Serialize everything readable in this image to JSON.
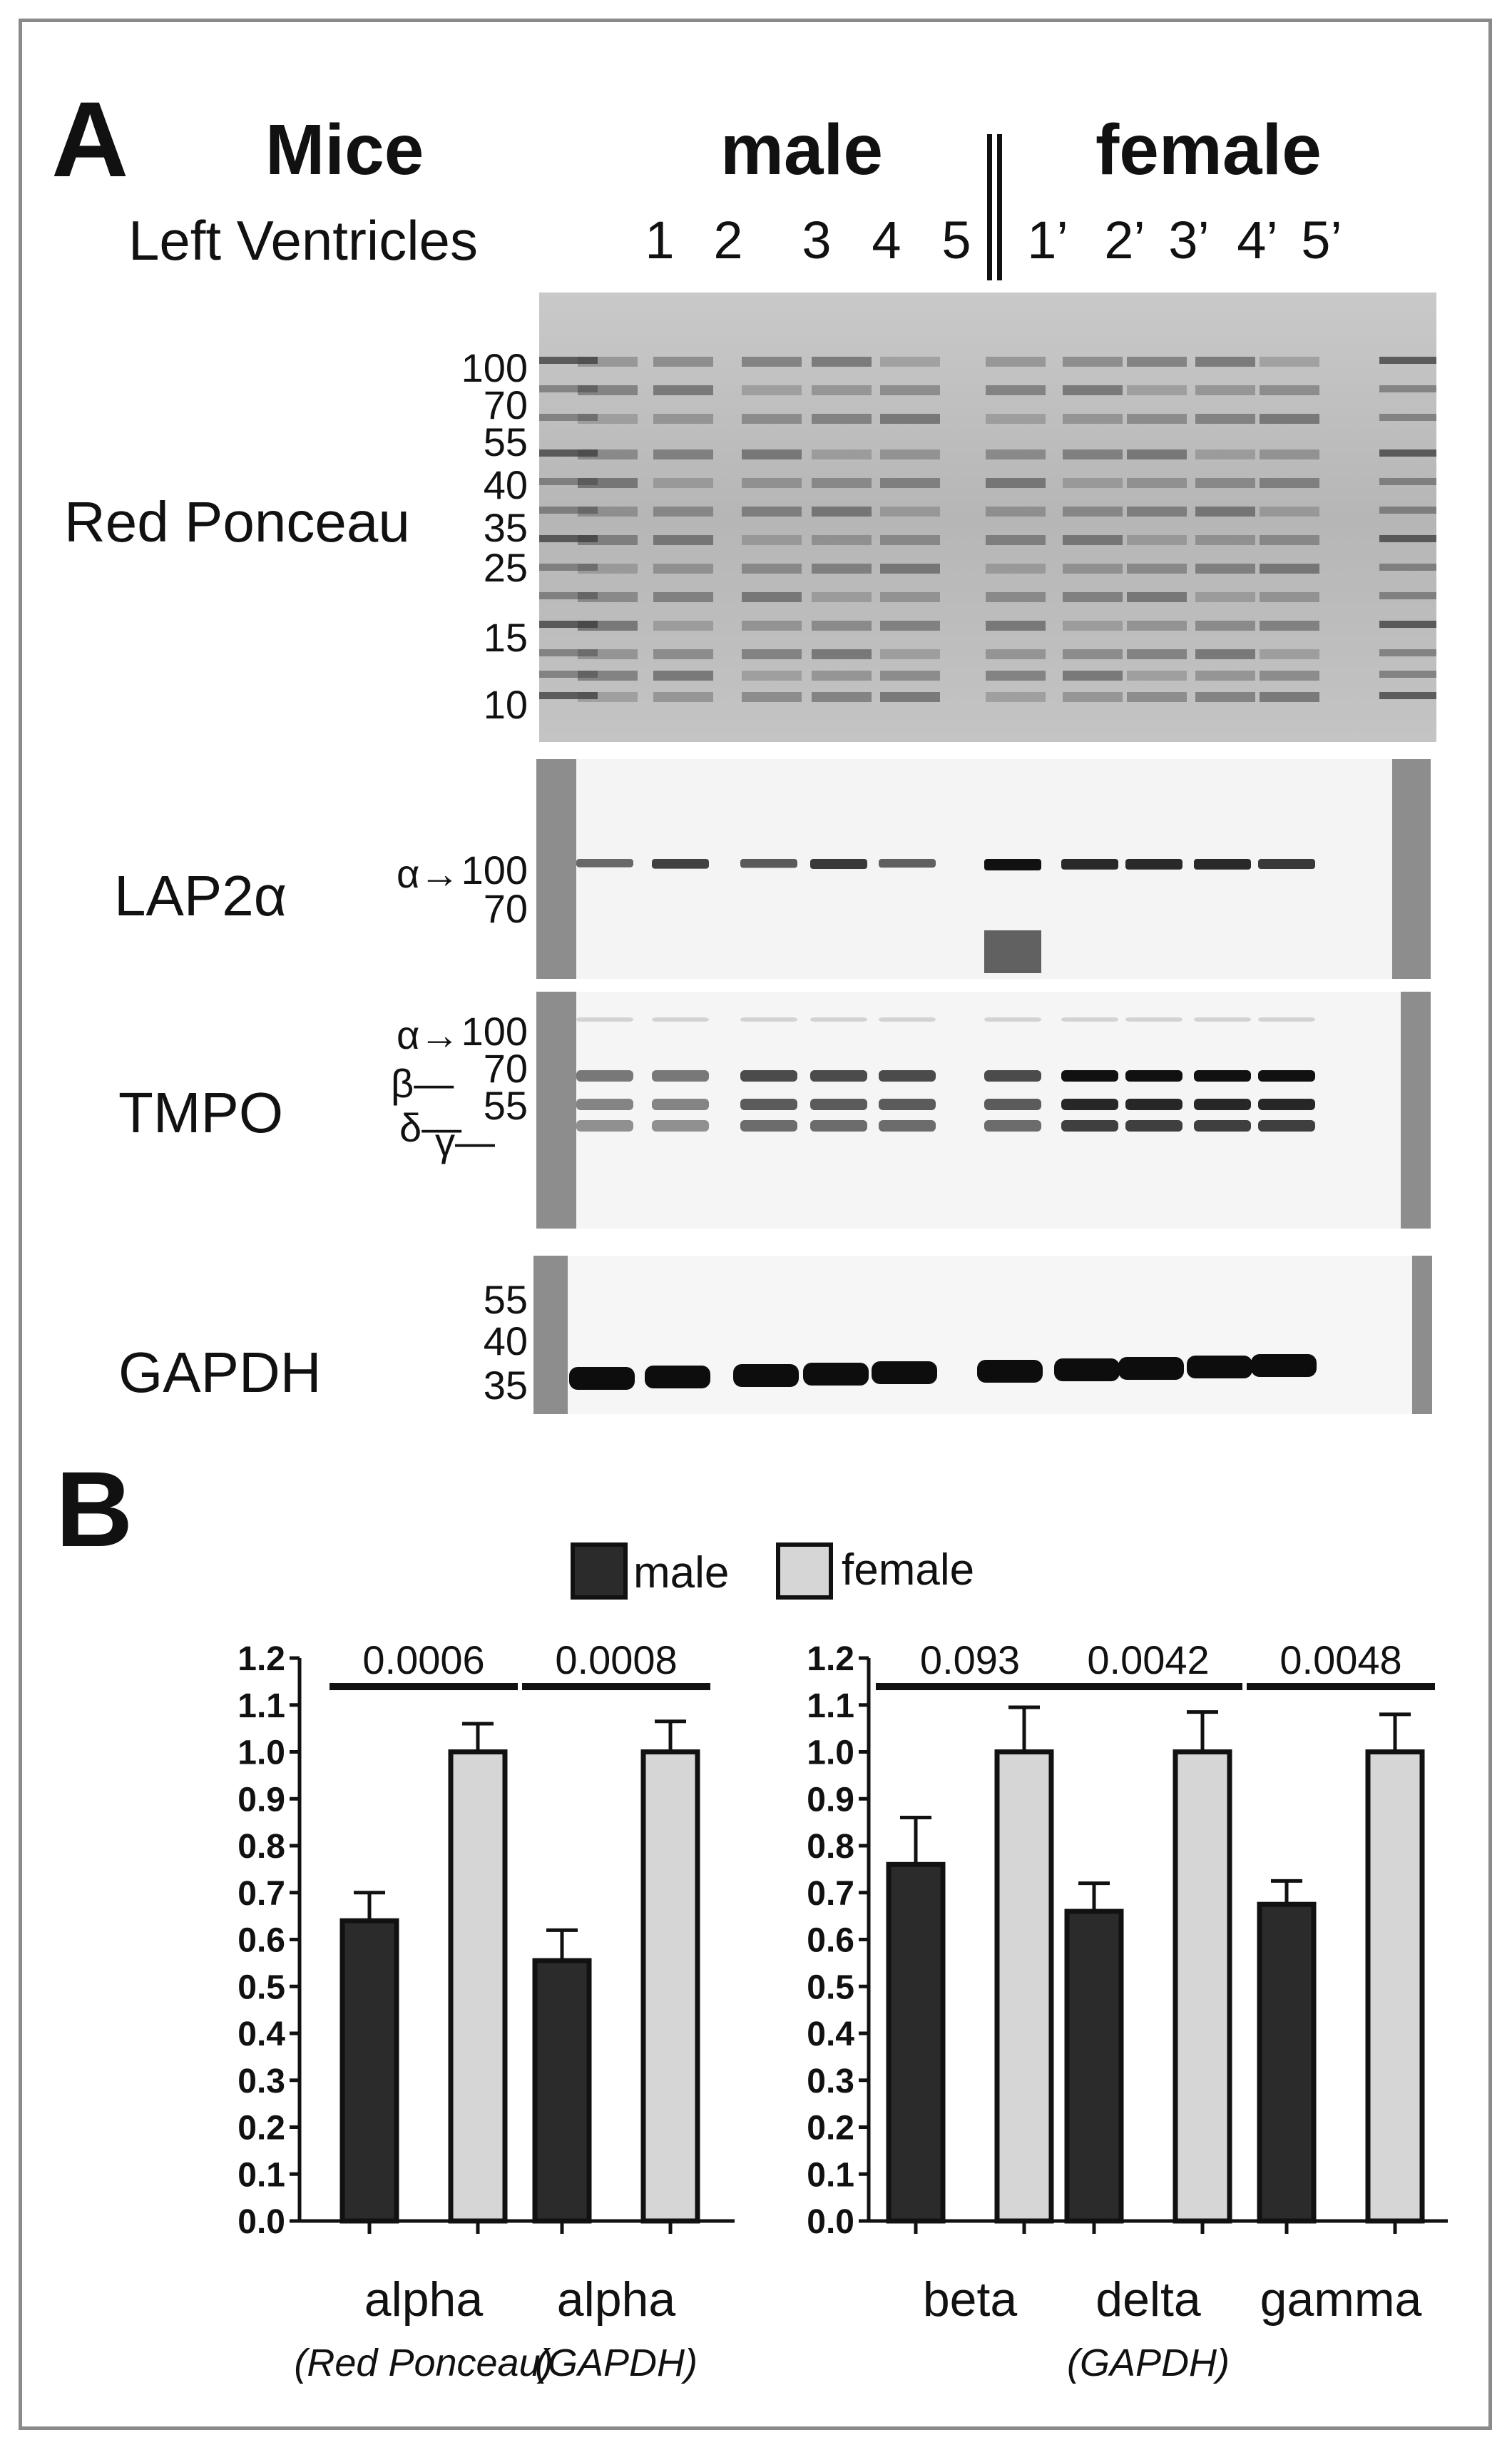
{
  "panel_a": {
    "letter": "A",
    "species": "Mice",
    "tissue": "Left Ventricles",
    "group_male": "male",
    "group_female": "female",
    "male_lanes": [
      "1",
      "2",
      "3",
      "4",
      "5"
    ],
    "female_lanes": [
      "1’",
      "2’",
      "3’",
      "4’",
      "5’"
    ],
    "blots": {
      "ponceau": {
        "name": "Red Ponceau",
        "markers": [
          "100",
          "70",
          "55",
          "40",
          "35",
          "25",
          "15",
          "10"
        ]
      },
      "lap2a": {
        "name": "LAP2α",
        "band_label": "α→",
        "markers": [
          "100",
          "70"
        ],
        "band_intensity": [
          0.45,
          0.7,
          0.55,
          0.75,
          0.5,
          1.0,
          0.85,
          0.85,
          0.85,
          0.75
        ]
      },
      "tmpo": {
        "name": "TMPO",
        "band_labels": [
          "α→",
          "β—",
          "δ—",
          "γ—"
        ],
        "markers": [
          "100",
          "70",
          "55"
        ]
      },
      "gapdh": {
        "name": "GAPDH",
        "markers": [
          "55",
          "40",
          "35"
        ]
      }
    }
  },
  "panel_b": {
    "letter": "B",
    "legend": [
      {
        "label": "male",
        "color": "#2b2b2b"
      },
      {
        "label": "female",
        "color": "#d6d6d6"
      }
    ],
    "y_ticks": [
      "1.2",
      "1.1",
      "1.0",
      "0.9",
      "0.8",
      "0.7",
      "0.6",
      "0.5",
      "0.4",
      "0.3",
      "0.2",
      "0.1",
      "0.0"
    ]
  },
  "chart_data": [
    {
      "type": "bar",
      "categories": [
        "alpha",
        "alpha"
      ],
      "category_sublabels": [
        "(Red Ponceau)",
        "(GAPDH)"
      ],
      "series": [
        {
          "name": "male",
          "values": [
            0.64,
            0.555
          ],
          "errors": [
            0.06,
            0.065
          ],
          "color": "#2b2b2b"
        },
        {
          "name": "female",
          "values": [
            1.0,
            1.0
          ],
          "errors": [
            0.06,
            0.065
          ],
          "color": "#d6d6d6"
        }
      ],
      "p_values": [
        "0.0006",
        "0.0008"
      ],
      "ylim": [
        0,
        1.2
      ],
      "title": "",
      "xlabel": "",
      "ylabel": ""
    },
    {
      "type": "bar",
      "categories": [
        "beta",
        "delta",
        "gamma"
      ],
      "category_sublabels": [
        "",
        "(GAPDH)",
        ""
      ],
      "series": [
        {
          "name": "male",
          "values": [
            0.76,
            0.66,
            0.675
          ],
          "errors": [
            0.1,
            0.06,
            0.05
          ],
          "color": "#2b2b2b"
        },
        {
          "name": "female",
          "values": [
            1.0,
            1.0,
            1.0
          ],
          "errors": [
            0.095,
            0.085,
            0.08
          ],
          "color": "#d6d6d6"
        }
      ],
      "p_values": [
        "0.093",
        "0.0042",
        "0.0048"
      ],
      "ylim": [
        0,
        1.2
      ],
      "title": "",
      "xlabel": "",
      "ylabel": ""
    }
  ]
}
